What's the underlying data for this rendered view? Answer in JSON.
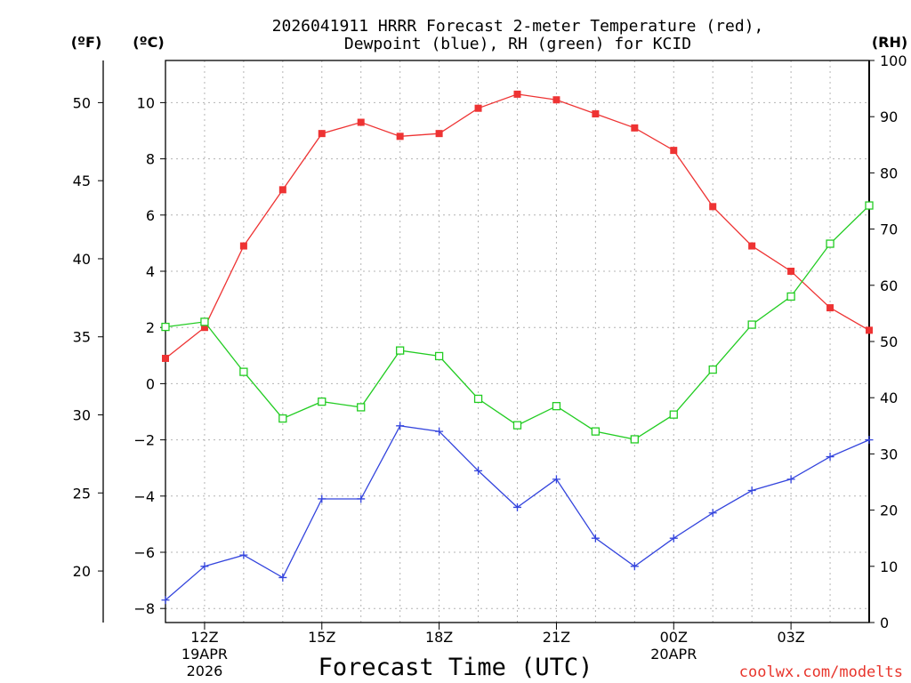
{
  "chart_data": {
    "type": "line",
    "title_lines": [
      "2026041911 HRRR Forecast 2-meter Temperature (red),",
      "Dewpoint (blue), RH (green) for KCID"
    ],
    "unit_labels": {
      "fahrenheit": "(ºF)",
      "celsius": "(ºC)",
      "rh": "(RH)"
    },
    "xlabel": "Forecast Time (UTC)",
    "credit": "coolwx.com/modelts",
    "x_hours": [
      11,
      12,
      13,
      14,
      15,
      16,
      17,
      18,
      19,
      20,
      21,
      22,
      23,
      24,
      25,
      26,
      27,
      28,
      29
    ],
    "xlim": [
      11,
      29
    ],
    "x_major_ticks": [
      {
        "hour": 12,
        "label": "12Z",
        "sub": [
          "19APR",
          "2026"
        ]
      },
      {
        "hour": 15,
        "label": "15Z",
        "sub": []
      },
      {
        "hour": 18,
        "label": "18Z",
        "sub": []
      },
      {
        "hour": 21,
        "label": "21Z",
        "sub": []
      },
      {
        "hour": 24,
        "label": "00Z",
        "sub": [
          "20APR"
        ]
      },
      {
        "hour": 27,
        "label": "03Z",
        "sub": []
      }
    ],
    "ylim_c": [
      -8.5,
      11.5
    ],
    "yticks_c": [
      10,
      8,
      6,
      4,
      2,
      0,
      -2,
      -4,
      -6,
      -8
    ],
    "yticks_c_labels": [
      "10",
      "8",
      "6",
      "4",
      "2",
      "0",
      "−2",
      "−4",
      "−6",
      "−8"
    ],
    "yticks_f": [
      50,
      45,
      40,
      35,
      30,
      25,
      20
    ],
    "ylim_rh": [
      0,
      100
    ],
    "yticks_rh": [
      100,
      90,
      80,
      70,
      60,
      50,
      40,
      30,
      20,
      10,
      0
    ],
    "grid": true,
    "series": [
      {
        "name": "2-meter Temperature",
        "units": "C",
        "axis": "celsius",
        "color": "#ee3333",
        "marker": "filled-square",
        "values": [
          0.9,
          2.0,
          4.9,
          6.9,
          8.9,
          9.3,
          8.8,
          8.9,
          9.8,
          10.3,
          10.1,
          9.6,
          9.1,
          8.3,
          6.3,
          4.9,
          4.0,
          2.7,
          1.9
        ]
      },
      {
        "name": "Dewpoint",
        "units": "C",
        "axis": "celsius",
        "color": "#3344dd",
        "marker": "plus",
        "values": [
          -7.7,
          -6.5,
          -6.1,
          -6.9,
          -4.1,
          -4.1,
          -1.5,
          -1.7,
          -3.1,
          -4.4,
          -3.4,
          -5.5,
          -6.5,
          -5.5,
          -4.6,
          -3.8,
          -3.4,
          -2.6,
          -2.0
        ]
      },
      {
        "name": "Relative Humidity",
        "units": "%",
        "axis": "rh",
        "color": "#22cc22",
        "marker": "open-square",
        "values": [
          52.6,
          53.5,
          44.6,
          36.3,
          39.3,
          38.3,
          48.4,
          47.4,
          39.8,
          35.1,
          38.5,
          34.0,
          32.6,
          37.0,
          45.0,
          53.0,
          58.0,
          67.4,
          74.2
        ]
      }
    ]
  }
}
